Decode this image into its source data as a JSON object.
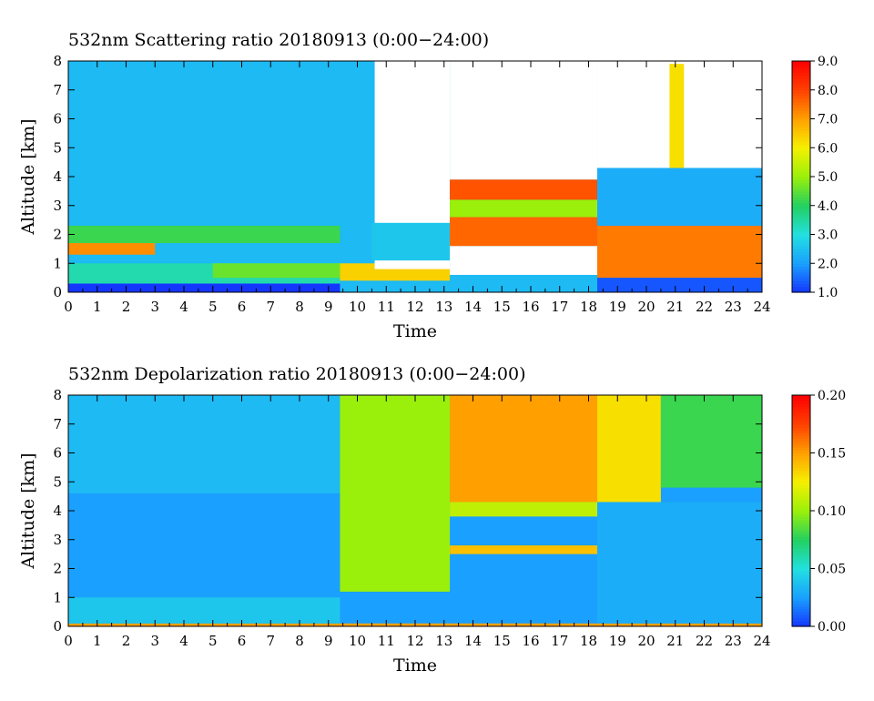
{
  "chart_data": [
    {
      "type": "heatmap",
      "title": "532nm Scattering ratio  20180913 (0:00−24:00)",
      "xlabel": "Time",
      "ylabel": "Altitude [km]",
      "xlim": [
        0,
        24
      ],
      "ylim": [
        0,
        8
      ],
      "x_ticks": [
        "0",
        "1",
        "2",
        "3",
        "4",
        "5",
        "6",
        "7",
        "8",
        "9",
        "10",
        "11",
        "12",
        "13",
        "14",
        "15",
        "16",
        "17",
        "18",
        "19",
        "20",
        "21",
        "22",
        "23",
        "24"
      ],
      "y_ticks": [
        "0",
        "1",
        "2",
        "3",
        "4",
        "5",
        "6",
        "7",
        "8"
      ],
      "colorbar": {
        "range": [
          1.0,
          9.0
        ],
        "ticks": [
          "1.0",
          "2.0",
          "3.0",
          "4.0",
          "5.0",
          "6.0",
          "7.0",
          "8.0",
          "9.0"
        ],
        "colors": [
          "#1436ff",
          "#1aa0ff",
          "#22e0e0",
          "#22d060",
          "#9af00a",
          "#f5f000",
          "#ffa000",
          "#ff4000",
          "#ff0000"
        ]
      },
      "field": {
        "background_value": 2.4,
        "regions": [
          {
            "t0": 0,
            "t1": 9.4,
            "z0": 0.0,
            "z1": 0.3,
            "value": 1.0
          },
          {
            "t0": 0,
            "t1": 9.4,
            "z0": 0.3,
            "z1": 1.0,
            "value": 3.4
          },
          {
            "t0": 0,
            "t1": 3.0,
            "z0": 1.3,
            "z1": 1.7,
            "value": 7.2
          },
          {
            "t0": 0,
            "t1": 9.4,
            "z0": 1.7,
            "z1": 2.3,
            "value": 4.2
          },
          {
            "t0": 5.0,
            "t1": 9.4,
            "z0": 0.5,
            "z1": 1.0,
            "value": 4.6
          },
          {
            "t0": 9.4,
            "t1": 13.2,
            "z0": 0.4,
            "z1": 1.0,
            "value": 6.4
          },
          {
            "t0": 10.6,
            "t1": 13.2,
            "z0": 0.8,
            "z1": 8.0,
            "value": 0
          },
          {
            "t0": 9.7,
            "t1": 10.5,
            "z0": 2.5,
            "z1": 4.6,
            "value": 2.4
          },
          {
            "t0": 10.5,
            "t1": 13.2,
            "z0": 1.1,
            "z1": 2.4,
            "value": 2.6
          },
          {
            "t0": 13.2,
            "t1": 18.3,
            "z0": 0.6,
            "z1": 1.6,
            "value": 0
          },
          {
            "t0": 13.2,
            "t1": 18.3,
            "z0": 1.6,
            "z1": 2.6,
            "value": 7.6
          },
          {
            "t0": 13.2,
            "t1": 18.3,
            "z0": 2.6,
            "z1": 3.2,
            "value": 5.0
          },
          {
            "t0": 13.2,
            "t1": 18.3,
            "z0": 3.2,
            "z1": 3.9,
            "value": 7.8
          },
          {
            "t0": 13.2,
            "t1": 18.3,
            "z0": 3.9,
            "z1": 8.0,
            "value": 0
          },
          {
            "t0": 18.3,
            "t1": 24,
            "z0": 0.5,
            "z1": 2.3,
            "value": 7.4
          },
          {
            "t0": 18.3,
            "t1": 24,
            "z0": 2.3,
            "z1": 4.3,
            "value": 2.2
          },
          {
            "t0": 18.3,
            "t1": 20.6,
            "z0": 4.3,
            "z1": 8.0,
            "value": 0
          },
          {
            "t0": 20.6,
            "t1": 24,
            "z0": 4.3,
            "z1": 8.0,
            "value": 0
          },
          {
            "t0": 20.8,
            "t1": 21.3,
            "z0": 4.3,
            "z1": 7.9,
            "value": 6.2
          },
          {
            "t0": 18.3,
            "t1": 24,
            "z0": 0.0,
            "z1": 0.5,
            "value": 1.3
          }
        ]
      }
    },
    {
      "type": "heatmap",
      "title": "532nm Depolarization ratio  20180913 (0:00−24:00)",
      "xlabel": "Time",
      "ylabel": "Altitude [km]",
      "xlim": [
        0,
        24
      ],
      "ylim": [
        0,
        8
      ],
      "x_ticks": [
        "0",
        "1",
        "2",
        "3",
        "4",
        "5",
        "6",
        "7",
        "8",
        "9",
        "10",
        "11",
        "12",
        "13",
        "14",
        "15",
        "16",
        "17",
        "18",
        "19",
        "20",
        "21",
        "22",
        "23",
        "24"
      ],
      "y_ticks": [
        "0",
        "1",
        "2",
        "3",
        "4",
        "5",
        "6",
        "7",
        "8"
      ],
      "colorbar": {
        "range": [
          0.0,
          0.2
        ],
        "ticks": [
          "0.00",
          "0.05",
          "0.10",
          "0.15",
          "0.20"
        ],
        "colors": [
          "#1436ff",
          "#1aa0ff",
          "#22e0e0",
          "#22d060",
          "#9af00a",
          "#f5f000",
          "#ffa000",
          "#ff4000",
          "#ff0000"
        ]
      },
      "field": {
        "background_value": 0.025,
        "regions": [
          {
            "t0": 0,
            "t1": 24,
            "z0": 0.0,
            "z1": 0.1,
            "value": 0.15
          },
          {
            "t0": 0,
            "t1": 9.4,
            "z0": 0.1,
            "z1": 1.0,
            "value": 0.04
          },
          {
            "t0": 0,
            "t1": 9.4,
            "z0": 4.6,
            "z1": 8.0,
            "value": 0.035
          },
          {
            "t0": 9.4,
            "t1": 13.2,
            "z0": 1.2,
            "z1": 8.0,
            "value": 0.1
          },
          {
            "t0": 13.2,
            "t1": 18.3,
            "z0": 2.5,
            "z1": 2.8,
            "value": 0.14
          },
          {
            "t0": 13.2,
            "t1": 18.3,
            "z0": 3.8,
            "z1": 4.3,
            "value": 0.11
          },
          {
            "t0": 13.2,
            "t1": 18.3,
            "z0": 4.3,
            "z1": 8.0,
            "value": 0.15
          },
          {
            "t0": 18.3,
            "t1": 20.5,
            "z0": 4.3,
            "z1": 8.0,
            "value": 0.13
          },
          {
            "t0": 20.5,
            "t1": 24,
            "z0": 4.8,
            "z1": 8.0,
            "value": 0.08
          },
          {
            "t0": 18.3,
            "t1": 24,
            "z0": 0.1,
            "z1": 4.3,
            "value": 0.03
          }
        ]
      }
    }
  ]
}
